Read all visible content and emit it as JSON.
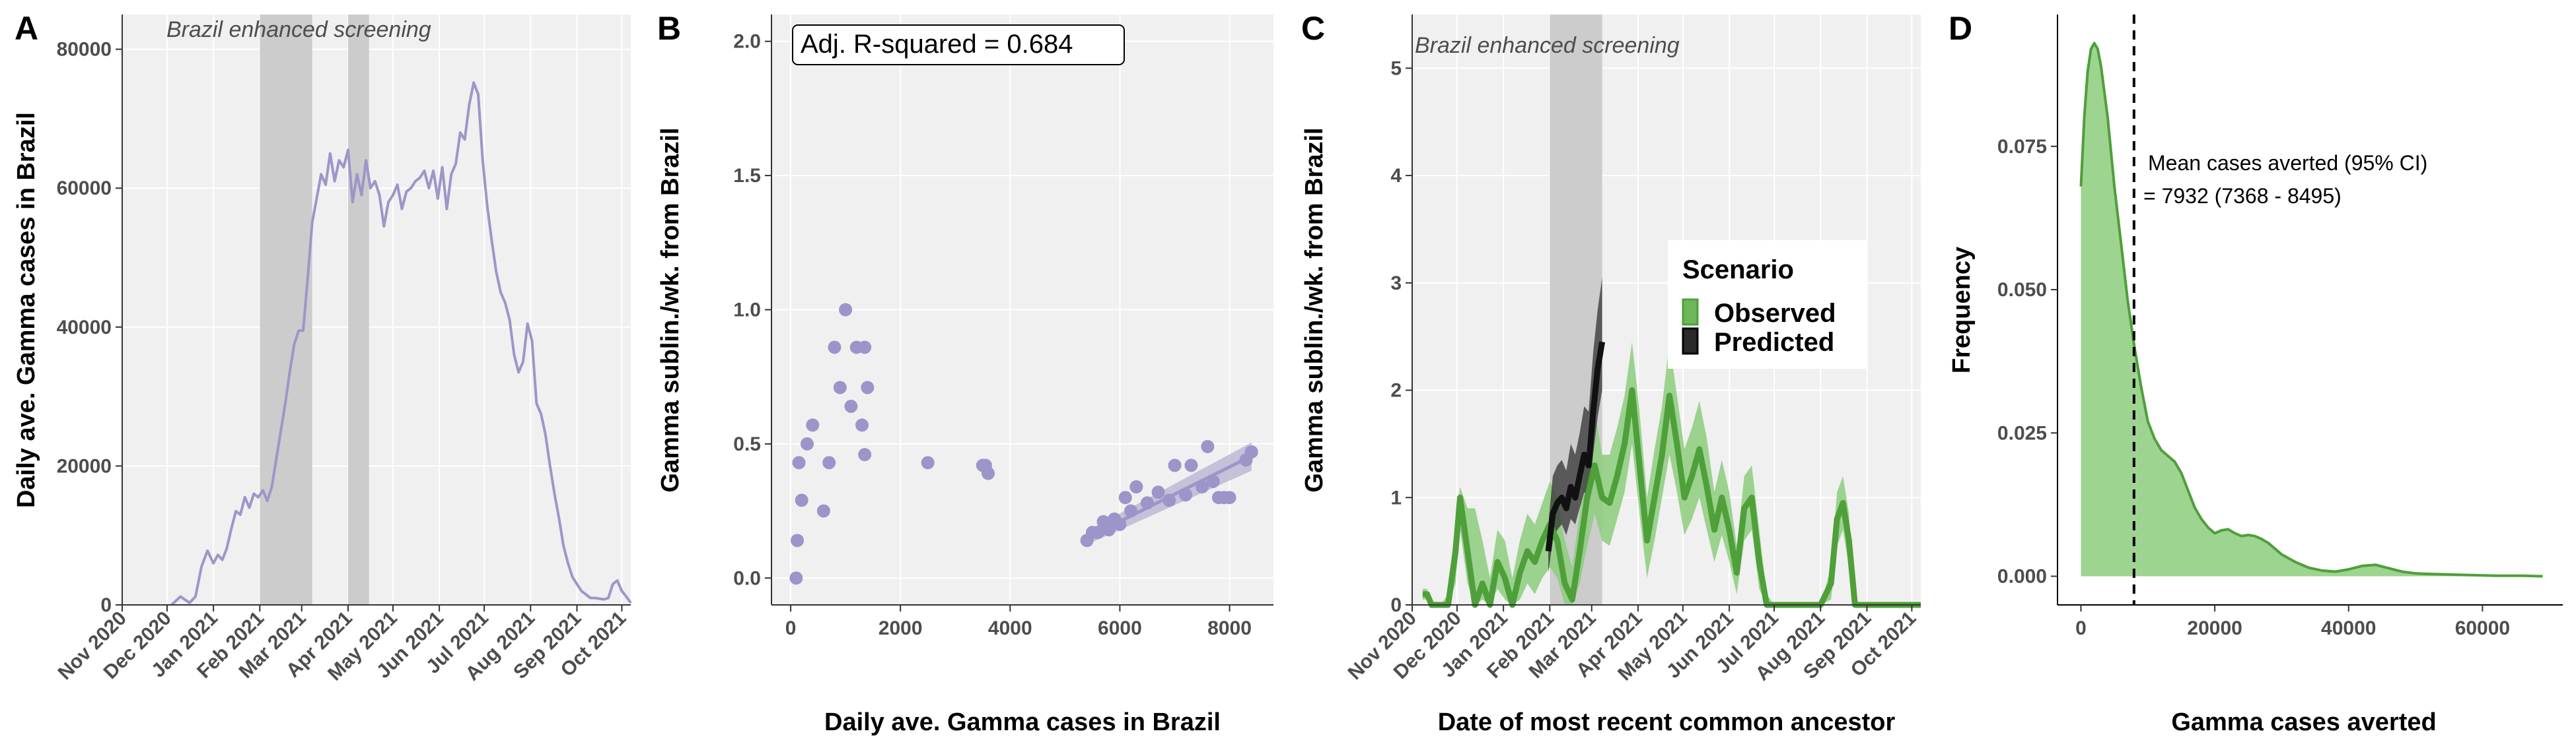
{
  "colors": {
    "panel_bg": "#f0f0f0",
    "shade": "#cccccc",
    "purple": "#9d96c8",
    "purple_point": "#9b95c9",
    "green": "#4f9f3a",
    "green_fill": "#8ccc7c",
    "black": "#111111"
  },
  "panels": [
    {
      "letter": "A",
      "type": "line",
      "annotation": "Brazil enhanced screening",
      "ylabel": "Daily ave. Gamma cases in Brazil",
      "xlabel": "",
      "ylim": [
        0,
        85000
      ],
      "yticks": [
        0,
        20000,
        40000,
        60000,
        80000
      ],
      "ytick_labels": [
        "0",
        "20000",
        "40000",
        "60000",
        "80000"
      ],
      "xdomain": [
        "2020-11-01",
        "2021-10-07"
      ],
      "xticks": [
        "2020-11-01",
        "2020-12-01",
        "2021-01-01",
        "2021-02-01",
        "2021-03-01",
        "2021-04-01",
        "2021-05-01",
        "2021-06-01",
        "2021-07-01",
        "2021-08-01",
        "2021-09-01",
        "2021-10-01"
      ],
      "xtick_labels": [
        "Nov 2020",
        "Dec 2020",
        "Jan 2021",
        "Feb 2021",
        "Mar 2021",
        "Apr 2021",
        "May 2021",
        "Jun 2021",
        "Jul 2021",
        "Aug 2021",
        "Sep 2021",
        "Oct 2021"
      ],
      "shaded": [
        [
          "2021-02-01",
          "2021-03-08"
        ],
        [
          "2021-04-01",
          "2021-04-15"
        ]
      ]
    },
    {
      "letter": "B",
      "type": "scatter",
      "annotation": "Adj. R-squared = 0.684",
      "ylabel": "Gamma sublin./wk. from Brazil",
      "xlabel": "Daily ave. Gamma cases in Brazil",
      "xlim": [
        -350,
        8800
      ],
      "ylim": [
        -0.1,
        2.1
      ],
      "xticks": [
        0,
        2000,
        4000,
        6000,
        8000
      ],
      "xtick_labels": [
        "0",
        "2000",
        "4000",
        "6000",
        "8000"
      ],
      "yticks": [
        0,
        0.5,
        1.0,
        1.5,
        2.0
      ],
      "ytick_labels": [
        "0.0",
        "0.5",
        "1.0",
        "1.5",
        "2.0"
      ]
    },
    {
      "letter": "C",
      "type": "line",
      "annotation": "Brazil enhanced screening",
      "ylabel": "Gamma sublin./wk. from Brazil",
      "xlabel": "Date of most recent common ancestor",
      "ylim": [
        0,
        5.5
      ],
      "yticks": [
        0,
        1,
        2,
        3,
        4,
        5
      ],
      "ytick_labels": [
        "0",
        "1",
        "2",
        "3",
        "4",
        "5"
      ],
      "xdomain": [
        "2020-11-01",
        "2021-10-07"
      ],
      "xticks": [
        "2020-11-01",
        "2020-12-01",
        "2021-01-01",
        "2021-02-01",
        "2021-03-01",
        "2021-04-01",
        "2021-05-01",
        "2021-06-01",
        "2021-07-01",
        "2021-08-01",
        "2021-09-01",
        "2021-10-01"
      ],
      "xtick_labels": [
        "Nov 2020",
        "Dec 2020",
        "Jan 2021",
        "Feb 2021",
        "Mar 2021",
        "Apr 2021",
        "May 2021",
        "Jun 2021",
        "Jul 2021",
        "Aug 2021",
        "Sep 2021",
        "Oct 2021"
      ],
      "shaded": [
        [
          "2021-02-01",
          "2021-03-08"
        ]
      ],
      "legend": {
        "title": "Scenario",
        "items": [
          "Observed",
          "Predicted"
        ],
        "position": "right"
      }
    },
    {
      "letter": "D",
      "type": "area",
      "annotation_lines": [
        "Mean cases averted (95% CI)",
        "= 7932 (7368 - 8495)"
      ],
      "ylabel": "Frequency",
      "xlabel": "Gamma cases averted",
      "xlim": [
        -3500,
        72000
      ],
      "ylim": [
        -0.005,
        0.098
      ],
      "xticks": [
        0,
        20000,
        40000,
        60000
      ],
      "xtick_labels": [
        "0",
        "20000",
        "40000",
        "60000"
      ],
      "yticks": [
        0,
        0.025,
        0.05,
        0.075
      ],
      "ytick_labels": [
        "0.000",
        "0.025",
        "0.050",
        "0.075"
      ],
      "mean_line": 7932
    }
  ],
  "chart_data": [
    {
      "type": "line",
      "title": "",
      "xlabel": "",
      "ylabel": "Daily ave. Gamma cases in Brazil",
      "series": [
        {
          "x": [
            "2020-12-04",
            "2020-12-10",
            "2020-12-16",
            "2020-12-20",
            "2020-12-24",
            "2020-12-28",
            "2021-01-01",
            "2021-01-04",
            "2021-01-07",
            "2021-01-10",
            "2021-01-13",
            "2021-01-16",
            "2021-01-19",
            "2021-01-22",
            "2021-01-25",
            "2021-01-28",
            "2021-01-31",
            "2021-02-03",
            "2021-02-06",
            "2021-02-09",
            "2021-02-12",
            "2021-02-15",
            "2021-02-18",
            "2021-02-21",
            "2021-02-24",
            "2021-02-27",
            "2021-03-02",
            "2021-03-05",
            "2021-03-08",
            "2021-03-11",
            "2021-03-14",
            "2021-03-17",
            "2021-03-20",
            "2021-03-23",
            "2021-03-26",
            "2021-03-29",
            "2021-04-01",
            "2021-04-04",
            "2021-04-07",
            "2021-04-10",
            "2021-04-13",
            "2021-04-16",
            "2021-04-19",
            "2021-04-22",
            "2021-04-25",
            "2021-04-28",
            "2021-05-01",
            "2021-05-04",
            "2021-05-07",
            "2021-05-10",
            "2021-05-13",
            "2021-05-16",
            "2021-05-19",
            "2021-05-22",
            "2021-05-25",
            "2021-05-28",
            "2021-05-31",
            "2021-06-03",
            "2021-06-06",
            "2021-06-09",
            "2021-06-12",
            "2021-06-15",
            "2021-06-18",
            "2021-06-21",
            "2021-06-24",
            "2021-06-27",
            "2021-06-30",
            "2021-07-03",
            "2021-07-06",
            "2021-07-09",
            "2021-07-12",
            "2021-07-15",
            "2021-07-18",
            "2021-07-21",
            "2021-07-24",
            "2021-07-27",
            "2021-07-30",
            "2021-08-02",
            "2021-08-05",
            "2021-08-08",
            "2021-08-11",
            "2021-08-14",
            "2021-08-17",
            "2021-08-20",
            "2021-08-23",
            "2021-08-26",
            "2021-08-29",
            "2021-09-01",
            "2021-09-04",
            "2021-09-07",
            "2021-09-10",
            "2021-09-13",
            "2021-09-16",
            "2021-09-19",
            "2021-09-22",
            "2021-09-25",
            "2021-09-28",
            "2021-10-01",
            "2021-10-04",
            "2021-10-07"
          ],
          "y": [
            0,
            1200,
            300,
            1200,
            5500,
            7800,
            6000,
            7200,
            6500,
            8200,
            11000,
            13500,
            13000,
            15500,
            14000,
            16000,
            15500,
            16500,
            15000,
            17000,
            21000,
            25000,
            29000,
            33500,
            37500,
            39500,
            39500,
            47000,
            55000,
            58500,
            62000,
            60500,
            65000,
            61000,
            64000,
            63000,
            65500,
            58000,
            62000,
            59000,
            64000,
            60000,
            61000,
            59000,
            54500,
            58000,
            59000,
            60500,
            57000,
            59500,
            60000,
            61000,
            61500,
            62500,
            60000,
            62500,
            58500,
            63000,
            57000,
            62000,
            63500,
            68000,
            67000,
            72000,
            75200,
            73500,
            64000,
            57500,
            52500,
            48000,
            45000,
            43500,
            41000,
            36000,
            33500,
            35000,
            40500,
            38000,
            29000,
            27500,
            24500,
            20000,
            16000,
            12500,
            8500,
            6000,
            4000,
            3000,
            2000,
            1500,
            1000,
            1000,
            900,
            800,
            1000,
            3000,
            3500,
            2000,
            1200,
            300
          ]
        }
      ]
    },
    {
      "type": "scatter",
      "title": "",
      "xlabel": "Daily ave. Gamma cases in Brazil",
      "ylabel": "Gamma sublin./wk. from Brazil",
      "series": [
        {
          "x": [
            100,
            120,
            150,
            200,
            300,
            400,
            600,
            700,
            800,
            900,
            1000,
            1100,
            1200,
            1300,
            1350,
            1400,
            1350,
            2500,
            3500,
            3600,
            3550,
            5400,
            5500,
            5600,
            5700,
            5800,
            5900,
            6000,
            6100,
            6200,
            6300,
            6500,
            6700,
            6900,
            7000,
            7200,
            7300,
            7500,
            7600,
            7700,
            7800,
            7900,
            8000,
            8300,
            8400
          ],
          "y": [
            0.0,
            0.14,
            0.43,
            0.29,
            0.5,
            0.57,
            0.25,
            0.43,
            0.86,
            0.71,
            1.0,
            0.64,
            0.86,
            0.57,
            0.46,
            0.71,
            0.86,
            0.43,
            0.42,
            0.39,
            0.42,
            0.14,
            0.17,
            0.17,
            0.21,
            0.18,
            0.22,
            0.2,
            0.3,
            0.25,
            0.34,
            0.28,
            0.32,
            0.29,
            0.42,
            0.31,
            0.42,
            0.34,
            0.49,
            0.36,
            0.3,
            0.3,
            0.3,
            0.44,
            0.47
          ]
        }
      ],
      "fit": {
        "x": [
          5400,
          8400
        ],
        "y": [
          0.15,
          0.455
        ],
        "se_lower": [
          0.125,
          0.4
        ],
        "se_upper": [
          0.175,
          0.505
        ]
      },
      "annotation": "Adj. R-squared = 0.684"
    },
    {
      "type": "line",
      "title": "",
      "xlabel": "Date of most recent common ancestor",
      "ylabel": "Gamma sublin./wk. from Brazil",
      "series": [
        {
          "name": "Observed",
          "x": [
            "2020-11-08",
            "2020-11-11",
            "2020-11-14",
            "2020-11-20",
            "2020-11-25",
            "2020-11-30",
            "2020-12-03",
            "2020-12-08",
            "2020-12-13",
            "2020-12-18",
            "2020-12-23",
            "2020-12-28",
            "2021-01-02",
            "2021-01-07",
            "2021-01-12",
            "2021-01-17",
            "2021-01-22",
            "2021-01-27",
            "2021-02-01",
            "2021-02-06",
            "2021-02-11",
            "2021-02-16",
            "2021-02-21",
            "2021-02-26",
            "2021-03-03",
            "2021-03-08",
            "2021-03-13",
            "2021-03-18",
            "2021-03-23",
            "2021-03-28",
            "2021-04-02",
            "2021-04-07",
            "2021-04-12",
            "2021-04-17",
            "2021-04-22",
            "2021-04-27",
            "2021-05-02",
            "2021-05-07",
            "2021-05-12",
            "2021-05-17",
            "2021-05-22",
            "2021-05-27",
            "2021-06-01",
            "2021-06-06",
            "2021-06-11",
            "2021-06-16",
            "2021-06-21",
            "2021-06-26",
            "2021-07-01",
            "2021-07-15",
            "2021-08-01",
            "2021-08-08",
            "2021-08-12",
            "2021-08-16",
            "2021-08-20",
            "2021-08-24",
            "2021-09-01",
            "2021-09-15",
            "2021-10-07"
          ],
          "y": [
            0.1,
            0.1,
            0.0,
            0.0,
            0.0,
            0.5,
            1.0,
            0.5,
            0.0,
            0.2,
            0.0,
            0.4,
            0.25,
            0.0,
            0.3,
            0.5,
            0.4,
            0.6,
            0.75,
            0.6,
            0.2,
            0.05,
            0.5,
            1.0,
            1.3,
            1.0,
            0.95,
            1.2,
            1.5,
            2.0,
            1.3,
            0.6,
            1.0,
            1.4,
            1.95,
            1.5,
            1.0,
            1.2,
            1.45,
            1.1,
            0.7,
            1.0,
            0.7,
            0.3,
            0.9,
            1.0,
            0.4,
            0.0,
            0.0,
            0.0,
            0.0,
            0.2,
            0.8,
            0.95,
            0.6,
            0.0,
            0.0,
            0.0,
            0.0
          ],
          "lower": [
            0.05,
            0.05,
            0.0,
            0.0,
            0.0,
            0.2,
            0.7,
            0.2,
            0.0,
            0.05,
            0.0,
            0.15,
            0.05,
            0.0,
            0.05,
            0.2,
            0.1,
            0.25,
            0.35,
            0.25,
            0.0,
            0.0,
            0.2,
            0.55,
            0.85,
            0.6,
            0.55,
            0.8,
            1.05,
            1.5,
            0.85,
            0.25,
            0.6,
            1.0,
            1.4,
            1.05,
            0.65,
            0.8,
            1.0,
            0.7,
            0.4,
            0.65,
            0.4,
            0.1,
            0.6,
            0.7,
            0.15,
            0.0,
            0.0,
            0.0,
            0.0,
            0.05,
            0.55,
            0.7,
            0.35,
            0.0,
            0.0,
            0.0,
            0.0
          ],
          "upper": [
            0.15,
            0.15,
            0.0,
            0.0,
            0.1,
            0.8,
            1.1,
            0.9,
            0.9,
            0.6,
            0.25,
            0.7,
            0.6,
            0.25,
            0.6,
            0.85,
            0.75,
            0.95,
            1.15,
            1.0,
            0.6,
            0.35,
            0.85,
            1.45,
            1.8,
            1.4,
            1.4,
            1.65,
            1.95,
            2.45,
            1.8,
            1.0,
            1.45,
            1.85,
            2.45,
            1.95,
            1.45,
            1.65,
            1.9,
            1.55,
            1.05,
            1.35,
            1.05,
            0.55,
            1.2,
            1.3,
            0.7,
            0.1,
            0.0,
            0.0,
            0.0,
            0.35,
            1.05,
            1.2,
            0.85,
            0.0,
            0.0,
            0.0,
            0.0
          ]
        },
        {
          "name": "Predicted",
          "x": [
            "2021-01-31",
            "2021-02-03",
            "2021-02-06",
            "2021-02-09",
            "2021-02-12",
            "2021-02-15",
            "2021-02-18",
            "2021-02-21",
            "2021-02-24",
            "2021-02-27",
            "2021-03-02",
            "2021-03-05",
            "2021-03-08"
          ],
          "y": [
            0.5,
            0.85,
            0.95,
            1.0,
            0.9,
            1.1,
            1.0,
            1.2,
            1.4,
            1.3,
            1.8,
            2.2,
            2.45
          ],
          "lower": [
            0.3,
            0.6,
            0.7,
            0.75,
            0.65,
            0.8,
            0.75,
            0.9,
            1.05,
            1.0,
            1.4,
            1.75,
            2.0
          ],
          "upper": [
            0.75,
            1.2,
            1.3,
            1.35,
            1.25,
            1.5,
            1.4,
            1.6,
            1.85,
            1.8,
            2.35,
            2.75,
            3.05
          ]
        }
      ]
    },
    {
      "type": "area",
      "title": "",
      "xlabel": "Gamma cases averted",
      "ylabel": "Frequency",
      "series": [
        {
          "x": [
            0,
            500,
            1000,
            1500,
            2000,
            2500,
            3000,
            4000,
            5000,
            6000,
            7000,
            8000,
            9000,
            10000,
            11000,
            12000,
            13000,
            14000,
            15000,
            16000,
            17000,
            18000,
            19000,
            20000,
            21000,
            22000,
            23000,
            24000,
            25000,
            26000,
            27000,
            28000,
            29000,
            30000,
            32000,
            34000,
            36000,
            38000,
            40000,
            42000,
            44000,
            46000,
            48000,
            50000,
            52000,
            55000,
            58000,
            62000,
            66000,
            69000
          ],
          "y": [
            0.068,
            0.08,
            0.088,
            0.092,
            0.093,
            0.092,
            0.089,
            0.08,
            0.068,
            0.058,
            0.048,
            0.04,
            0.033,
            0.027,
            0.024,
            0.022,
            0.021,
            0.02,
            0.018,
            0.015,
            0.012,
            0.01,
            0.0085,
            0.0075,
            0.008,
            0.0082,
            0.0075,
            0.007,
            0.0072,
            0.007,
            0.0065,
            0.0058,
            0.0048,
            0.0038,
            0.0025,
            0.0015,
            0.001,
            0.0008,
            0.0012,
            0.0018,
            0.002,
            0.0014,
            0.0008,
            0.0005,
            0.0004,
            0.0003,
            0.0002,
            0.0001,
            0.0001,
            0.0
          ]
        }
      ],
      "mean_line": 7932,
      "annotation": [
        "Mean cases averted (95% CI)",
        "= 7932 (7368 - 8495)"
      ]
    }
  ]
}
